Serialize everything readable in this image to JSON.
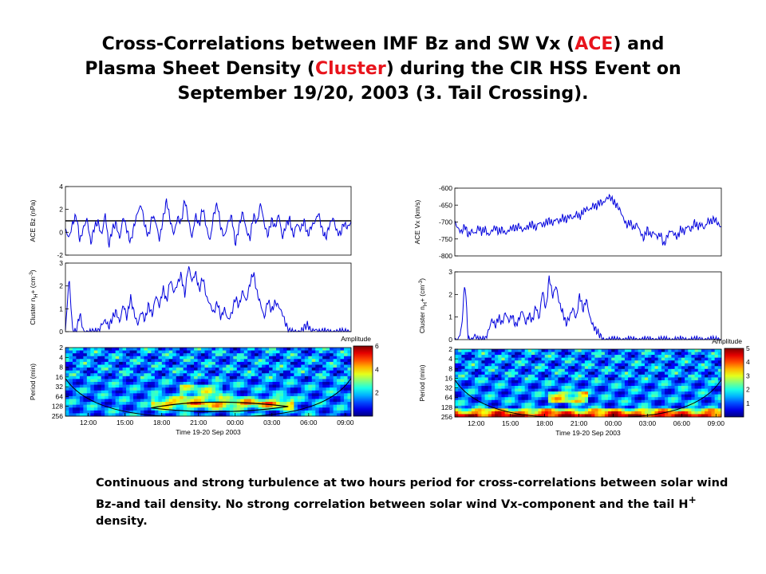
{
  "title": {
    "line1_a": "Cross-Correlations between IMF Bz and SW Vx (",
    "line1_b": "ACE",
    "line1_c": ") and",
    "line2_a": "Plasma Sheet Density (",
    "line2_b": "Cluster",
    "line2_c": ") during the CIR HSS Event on",
    "line3": "September 19/20, 2003 (3. Tail Crossing)."
  },
  "caption": {
    "text1": "Continuous and strong turbulence at two hours period for cross-correlations between solar wind Bz-and tail density. No strong correlation between solar wind Vx-component and the tail H",
    "sup": "+",
    "text2": " density."
  },
  "colors": {
    "line": "#0000dd",
    "accent_red": "#e8141c",
    "ref_line": "#000000"
  },
  "chart_data": [
    {
      "type": "line",
      "panel": "left-top",
      "ylabel": "ACE Bz (nPa)",
      "ylim": [
        -2,
        4
      ],
      "yticks": [
        "-2",
        "0",
        "2",
        "4"
      ],
      "reference_line_y": 1,
      "series": [
        {
          "values": [
            0.2,
            -0.5,
            0.8,
            1.5,
            -0.8,
            0.4,
            1.2,
            -1.0,
            0.5,
            0.9,
            -0.3,
            1.6,
            -1.2,
            0.3,
            0.8,
            -0.6,
            1.4,
            0.2,
            -0.9,
            0.6,
            1.8,
            2.4,
            0.5,
            -0.4,
            1.5,
            0.9,
            -0.7,
            1.2,
            2.8,
            1.0,
            -0.2,
            1.3,
            0.8,
            2.9,
            1.1,
            -0.5,
            1.5,
            0.6,
            2.2,
            0.4,
            -0.8,
            1.6,
            2.5,
            0.3,
            -0.4,
            0.9,
            1.4,
            -1.1,
            0.5,
            1.8,
            0.2,
            -0.6,
            1.5,
            0.8,
            2.6,
            0.7,
            -0.3,
            1.1,
            0.4,
            1.6,
            -0.5,
            0.6,
            1.2,
            -0.4,
            0.8,
            0.2,
            1.0,
            -0.3,
            0.5,
            0.9,
            1.7,
            0.2,
            -0.5,
            0.6,
            1.3,
            0.1,
            -0.2,
            0.8,
            0.4,
            0.9
          ]
        }
      ]
    },
    {
      "type": "line",
      "panel": "left-middle",
      "ylabel": "Cluster n_H+ (cm^-3)",
      "ylim": [
        0,
        3
      ],
      "yticks": [
        "0",
        "1",
        "2",
        "3"
      ],
      "series": [
        {
          "values": [
            0,
            2.4,
            0,
            0,
            0.8,
            0,
            0,
            0,
            0,
            0,
            0.3,
            0.5,
            0.2,
            0.6,
            0.9,
            0.4,
            1.2,
            0.6,
            1.5,
            0.8,
            0.3,
            0.9,
            0.5,
            1.2,
            0.7,
            1.6,
            1.1,
            1.9,
            1.3,
            2.3,
            1.7,
            2.1,
            2.5,
            1.6,
            2.9,
            2.2,
            2.6,
            1.8,
            2.4,
            1.5,
            1.2,
            0.8,
            1.3,
            0.6,
            1.0,
            0.5,
            0.8,
            1.5,
            1.1,
            1.8,
            1.3,
            2.1,
            2.6,
            1.7,
            1.2,
            0.6,
            1.4,
            0.9,
            1.3,
            1.1,
            0.8,
            0.3,
            0,
            0,
            0,
            0,
            0.2,
            0.3,
            0,
            0.1,
            0,
            0,
            0,
            0,
            0,
            0,
            0,
            0,
            0,
            0
          ]
        }
      ]
    },
    {
      "type": "heatmap",
      "panel": "left-bottom",
      "ylabel": "Period (min)",
      "yticks": [
        "2",
        "4",
        "8",
        "16",
        "32",
        "64",
        "128",
        "256"
      ],
      "xticks": [
        "12:00",
        "15:00",
        "18:00",
        "21:00",
        "00:00",
        "03:00",
        "06:00",
        "09:00"
      ],
      "xlabel": "Time 19-20 Sep 2003",
      "colorbar_label": "Amplitude",
      "colorbar_ticks": [
        "2",
        "4",
        "6"
      ],
      "colorbar_max": 6,
      "peak_period_min": 128
    },
    {
      "type": "line",
      "panel": "right-top",
      "ylabel": "ACE Vx (km/s)",
      "ylim": [
        -800,
        -600
      ],
      "yticks": [
        "-600",
        "-650",
        "-700",
        "-750",
        "-800"
      ],
      "series": [
        {
          "values": [
            -700,
            -720,
            -730,
            -710,
            -740,
            -725,
            -735,
            -715,
            -730,
            -720,
            -740,
            -725,
            -715,
            -730,
            -720,
            -735,
            -725,
            -715,
            -720,
            -710,
            -725,
            -718,
            -712,
            -705,
            -720,
            -700,
            -710,
            -702,
            -695,
            -705,
            -690,
            -700,
            -685,
            -695,
            -680,
            -690,
            -675,
            -685,
            -670,
            -660,
            -665,
            -650,
            -655,
            -640,
            -645,
            -630,
            -625,
            -640,
            -650,
            -665,
            -690,
            -710,
            -700,
            -720,
            -705,
            -730,
            -750,
            -720,
            -740,
            -730,
            -745,
            -735,
            -770,
            -740,
            -725,
            -735,
            -745,
            -720,
            -730,
            -710,
            -725,
            -700,
            -715,
            -705,
            -720,
            -695,
            -700,
            -690,
            -705,
            -715
          ]
        }
      ]
    },
    {
      "type": "line",
      "panel": "right-middle",
      "ylabel": "Cluster n_H+ (cm^-3)",
      "ylim": [
        0,
        3
      ],
      "yticks": [
        "0",
        "1",
        "2",
        "3"
      ],
      "series": [
        {
          "values": [
            0,
            0,
            0.5,
            2.6,
            0,
            0,
            0.2,
            0,
            0,
            0,
            0.4,
            0.9,
            0.6,
            1.0,
            0.7,
            1.2,
            0.8,
            1.1,
            0.6,
            0.9,
            1.3,
            0.7,
            1.1,
            0.8,
            1.5,
            0.9,
            2.2,
            1.3,
            2.8,
            1.9,
            2.4,
            1.6,
            1.2,
            0.7,
            1.0,
            1.4,
            0.9,
            2.0,
            1.3,
            1.8,
            1.0,
            0.6,
            0.4,
            0.2,
            0,
            0,
            0,
            0,
            0,
            0,
            0,
            0,
            0,
            0,
            0,
            0,
            0,
            0,
            0,
            0,
            0,
            0,
            0,
            0,
            0,
            0,
            0,
            0,
            0,
            0,
            0,
            0,
            0,
            0,
            0,
            0,
            0,
            0,
            0,
            0
          ]
        }
      ]
    },
    {
      "type": "heatmap",
      "panel": "right-bottom",
      "ylabel": "Period (min)",
      "yticks": [
        "2",
        "4",
        "8",
        "16",
        "32",
        "64",
        "128",
        "256"
      ],
      "xticks": [
        "12:00",
        "15:00",
        "18:00",
        "21:00",
        "00:00",
        "03:00",
        "06:00",
        "09:00"
      ],
      "xlabel": "Time 19-20 Sep 2003",
      "colorbar_label": "Amplitude",
      "colorbar_ticks": [
        "1",
        "2",
        "3",
        "4",
        "5"
      ],
      "colorbar_max": 5,
      "peak_period_min": 256
    }
  ]
}
